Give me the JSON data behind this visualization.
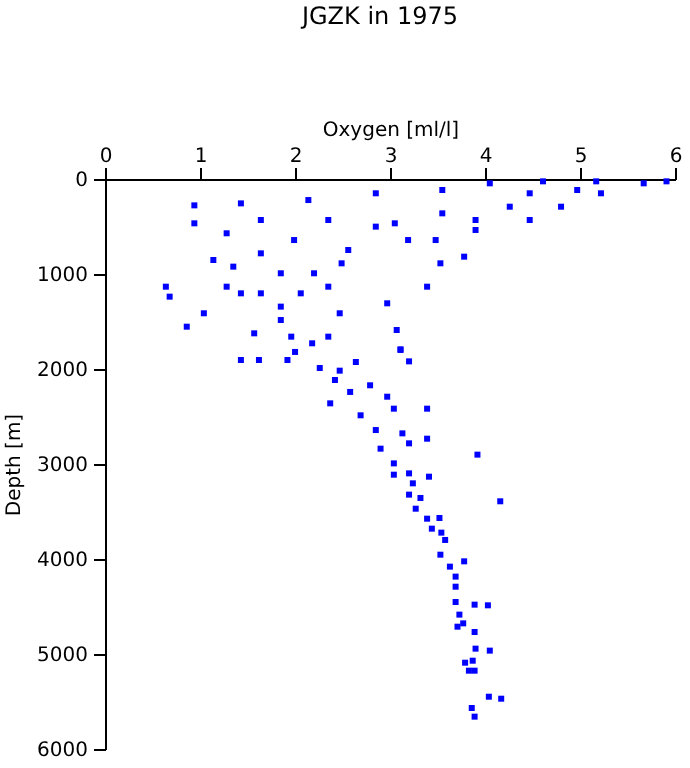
{
  "chart_data": {
    "type": "scatter",
    "title": "JGZK in 1975",
    "xlabel": "Oxygen [ml/l]",
    "ylabel": "Depth [m]",
    "xlim": [
      0,
      6
    ],
    "xticks": [
      0,
      1,
      2,
      3,
      4,
      5,
      6
    ],
    "ylim": [
      6000,
      0
    ],
    "yticks": [
      0,
      1000,
      2000,
      3000,
      4000,
      5000,
      6000
    ],
    "marker": "square",
    "series": [
      {
        "color": "#0000ff",
        "x": [
          0.93,
          0.93,
          1.42,
          2.13,
          2.84,
          3.54,
          4.04,
          4.6,
          5.16,
          5.66,
          5.9,
          5.21,
          4.79,
          4.46,
          3.89,
          3.47,
          3.18,
          3.04,
          2.55,
          2.48,
          2.19,
          2.05,
          1.84,
          1.63,
          1.42,
          1.03,
          0.85,
          0.67,
          0.63,
          1.13,
          1.34,
          1.27,
          1.63,
          1.63,
          2.34,
          1.98,
          2.34,
          1.27,
          1.84,
          2.84,
          3.54,
          4.25,
          3.89,
          4.46,
          4.96,
          3.38,
          3.52,
          3.77,
          2.96,
          2.46,
          1.84,
          1.56,
          1.95,
          2.17,
          2.34,
          3.06,
          3.1,
          1.42,
          1.91,
          1.61,
          1.99,
          2.25,
          2.46,
          2.63,
          3.1,
          3.19,
          2.41,
          2.57,
          2.36,
          2.78,
          2.96,
          2.68,
          3.03,
          3.38,
          2.84,
          3.12,
          3.38,
          3.19,
          2.89,
          3.03,
          3.03,
          3.19,
          3.4,
          3.23,
          3.91,
          3.19,
          3.31,
          4.15,
          3.26,
          3.38,
          3.51,
          3.43,
          3.53,
          3.57,
          3.52,
          3.62,
          3.77,
          3.68,
          3.68,
          3.68,
          3.88,
          4.02,
          3.72,
          3.76,
          3.7,
          3.88,
          3.89,
          4.04,
          3.78,
          3.86,
          3.82,
          3.88,
          4.03,
          4.16,
          3.85,
          3.88
        ],
        "values": [
          267,
          456,
          246,
          211,
          140,
          105,
          35,
          14,
          14,
          35,
          14,
          140,
          281,
          421,
          526,
          632,
          632,
          456,
          737,
          877,
          982,
          1193,
          1333,
          1193,
          1193,
          1403,
          1544,
          1228,
          1123,
          842,
          912,
          1123,
          772,
          421,
          421,
          632,
          1123,
          561,
          982,
          491,
          351,
          281,
          421,
          140,
          105,
          1123,
          877,
          807,
          1298,
          1403,
          1474,
          1614,
          1649,
          1719,
          1649,
          1579,
          1789,
          1895,
          1895,
          1895,
          1810,
          1979,
          2007,
          1916,
          1782,
          1909,
          2105,
          2231,
          2351,
          2161,
          2281,
          2477,
          2407,
          2407,
          2632,
          2667,
          2723,
          2772,
          2828,
          2983,
          3102,
          3088,
          3123,
          3193,
          2891,
          3312,
          3347,
          3382,
          3460,
          3565,
          3558,
          3670,
          3712,
          3789,
          3944,
          4070,
          4014,
          4175,
          4281,
          4442,
          4470,
          4477,
          4575,
          4667,
          4702,
          4758,
          4933,
          4954,
          5081,
          5060,
          5165,
          5165,
          5439,
          5460,
          5558,
          5649
        ]
      }
    ]
  }
}
